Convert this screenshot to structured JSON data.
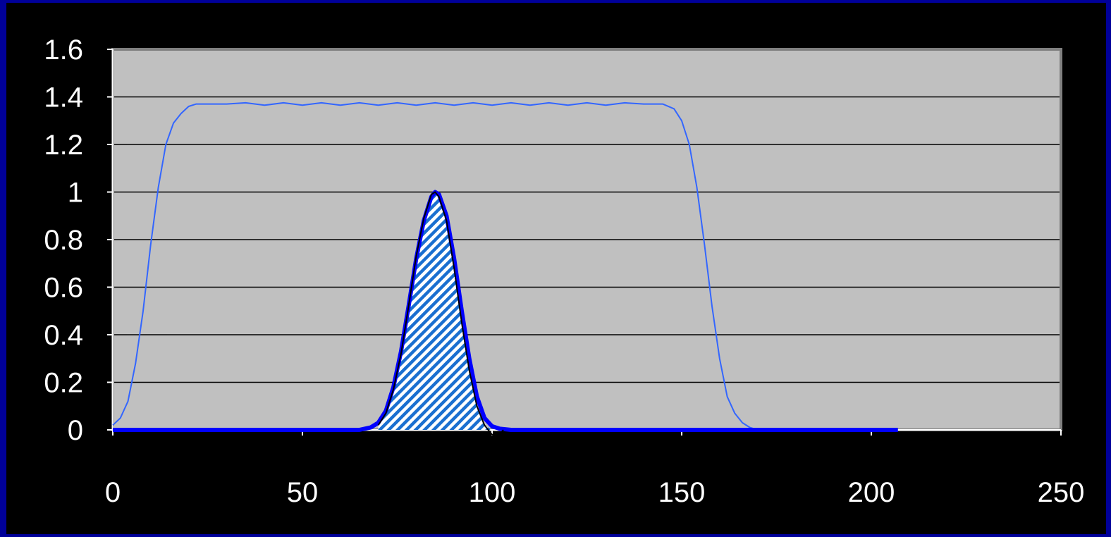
{
  "chart_data": {
    "type": "line",
    "title": "",
    "xlabel": "",
    "ylabel": "",
    "xlim": [
      0,
      250
    ],
    "ylim": [
      0,
      1.6
    ],
    "x_ticks": [
      "0",
      "50",
      "100",
      "150",
      "200",
      "250"
    ],
    "y_ticks": [
      "0",
      "0.2",
      "0.4",
      "0.6",
      "0.8",
      "1",
      "1.2",
      "1.4",
      "1.6"
    ],
    "grid": "horizontal",
    "plot_background": "#c0c0c0",
    "page_background": "#000000",
    "border_color": "#000099",
    "series": [
      {
        "color": "#3366ff",
        "style": "thin",
        "x": [
          0,
          2,
          4,
          6,
          8,
          10,
          12,
          14,
          16,
          18,
          20,
          22,
          25,
          30,
          35,
          40,
          45,
          50,
          55,
          60,
          65,
          70,
          75,
          80,
          85,
          90,
          95,
          100,
          105,
          110,
          115,
          120,
          125,
          130,
          135,
          140,
          145,
          148,
          150,
          152,
          154,
          156,
          158,
          160,
          162,
          164,
          166,
          168,
          170,
          172,
          175,
          180,
          190,
          200,
          207
        ],
        "y": [
          0.02,
          0.05,
          0.12,
          0.28,
          0.5,
          0.78,
          1.02,
          1.2,
          1.29,
          1.33,
          1.36,
          1.37,
          1.37,
          1.37,
          1.375,
          1.365,
          1.375,
          1.365,
          1.375,
          1.365,
          1.375,
          1.365,
          1.375,
          1.365,
          1.375,
          1.365,
          1.375,
          1.365,
          1.375,
          1.365,
          1.375,
          1.365,
          1.375,
          1.365,
          1.375,
          1.37,
          1.37,
          1.35,
          1.3,
          1.2,
          1.02,
          0.78,
          0.52,
          0.3,
          0.14,
          0.07,
          0.03,
          0.01,
          0.0,
          0.0,
          0.0,
          0.0,
          0.0,
          0.0,
          0.0
        ]
      },
      {
        "color": "#0000ff",
        "style": "thick",
        "x": [
          0,
          50,
          65,
          68,
          70,
          72,
          74,
          76,
          78,
          80,
          82,
          84,
          85,
          86,
          88,
          90,
          92,
          94,
          96,
          98,
          100,
          102,
          105,
          150,
          200,
          207
        ],
        "y": [
          0.0,
          0.0,
          0.0,
          0.01,
          0.03,
          0.08,
          0.18,
          0.33,
          0.52,
          0.72,
          0.88,
          0.98,
          1.0,
          0.99,
          0.9,
          0.72,
          0.5,
          0.3,
          0.14,
          0.05,
          0.015,
          0.005,
          0.0,
          0.0,
          0.0,
          0.0
        ]
      },
      {
        "color": "#000000",
        "style": "thin",
        "hatched": true,
        "x": [
          70,
          72,
          74,
          76,
          78,
          80,
          82,
          84,
          85,
          86,
          88,
          90,
          92,
          94,
          96,
          98,
          100,
          102,
          103
        ],
        "y": [
          0.02,
          0.07,
          0.17,
          0.32,
          0.52,
          0.73,
          0.89,
          0.99,
          1.0,
          0.98,
          0.88,
          0.68,
          0.45,
          0.25,
          0.1,
          0.02,
          -0.02,
          -0.02,
          0.0
        ]
      }
    ]
  }
}
